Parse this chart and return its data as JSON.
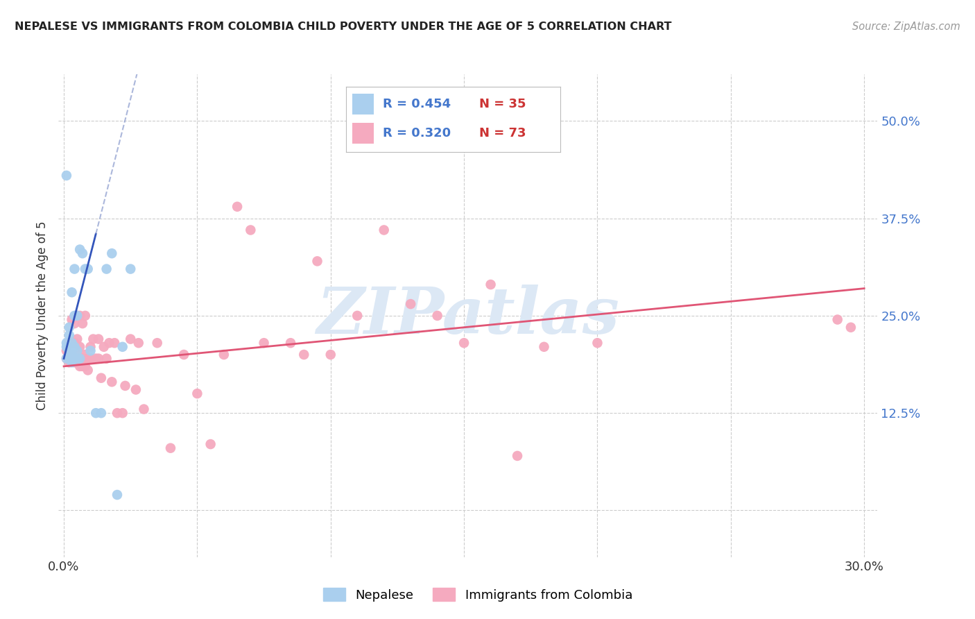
{
  "title": "NEPALESE VS IMMIGRANTS FROM COLOMBIA CHILD POVERTY UNDER THE AGE OF 5 CORRELATION CHART",
  "source": "Source: ZipAtlas.com",
  "ylabel": "Child Poverty Under the Age of 5",
  "xlim": [
    -0.002,
    0.305
  ],
  "ylim": [
    -0.06,
    0.56
  ],
  "ytick_vals": [
    0.0,
    0.125,
    0.25,
    0.375,
    0.5
  ],
  "ytick_labels": [
    "",
    "12.5%",
    "25.0%",
    "37.5%",
    "50.0%"
  ],
  "xtick_vals": [
    0.0,
    0.05,
    0.1,
    0.15,
    0.2,
    0.25,
    0.3
  ],
  "xtick_labels": [
    "0.0%",
    "",
    "",
    "",
    "",
    "",
    "30.0%"
  ],
  "nepalese_color": "#aacfee",
  "colombia_color": "#f5aabf",
  "trendline_nep_color": "#3355bb",
  "trendline_col_color": "#e05575",
  "trendline_nep_dash_color": "#8899cc",
  "watermark_text": "ZIPatlas",
  "watermark_color": "#dce8f5",
  "legend_nep_R": "R = 0.454",
  "legend_nep_N": "N = 35",
  "legend_col_R": "R = 0.320",
  "legend_col_N": "N = 73",
  "R_color": "#4477cc",
  "N_color": "#cc3333",
  "nepalese_x": [
    0.001,
    0.001,
    0.001,
    0.002,
    0.002,
    0.002,
    0.002,
    0.002,
    0.003,
    0.003,
    0.003,
    0.003,
    0.003,
    0.003,
    0.004,
    0.004,
    0.004,
    0.004,
    0.005,
    0.005,
    0.005,
    0.006,
    0.006,
    0.007,
    0.008,
    0.009,
    0.01,
    0.012,
    0.014,
    0.016,
    0.018,
    0.02,
    0.022,
    0.025,
    0.001
  ],
  "nepalese_y": [
    0.195,
    0.21,
    0.215,
    0.195,
    0.2,
    0.205,
    0.225,
    0.235,
    0.19,
    0.195,
    0.2,
    0.21,
    0.215,
    0.28,
    0.195,
    0.21,
    0.25,
    0.31,
    0.195,
    0.205,
    0.25,
    0.195,
    0.335,
    0.33,
    0.31,
    0.31,
    0.205,
    0.125,
    0.125,
    0.31,
    0.33,
    0.02,
    0.21,
    0.31,
    0.43
  ],
  "colombia_x": [
    0.001,
    0.001,
    0.002,
    0.002,
    0.002,
    0.002,
    0.003,
    0.003,
    0.003,
    0.003,
    0.004,
    0.004,
    0.004,
    0.004,
    0.005,
    0.005,
    0.005,
    0.005,
    0.006,
    0.006,
    0.006,
    0.006,
    0.007,
    0.007,
    0.007,
    0.008,
    0.008,
    0.008,
    0.009,
    0.009,
    0.01,
    0.01,
    0.011,
    0.012,
    0.013,
    0.013,
    0.014,
    0.015,
    0.016,
    0.017,
    0.018,
    0.019,
    0.02,
    0.022,
    0.023,
    0.025,
    0.027,
    0.028,
    0.03,
    0.035,
    0.04,
    0.045,
    0.05,
    0.055,
    0.06,
    0.065,
    0.07,
    0.075,
    0.085,
    0.09,
    0.095,
    0.1,
    0.11,
    0.12,
    0.13,
    0.14,
    0.15,
    0.16,
    0.17,
    0.18,
    0.2,
    0.295,
    0.29
  ],
  "colombia_y": [
    0.195,
    0.205,
    0.19,
    0.195,
    0.2,
    0.215,
    0.195,
    0.2,
    0.215,
    0.245,
    0.19,
    0.195,
    0.215,
    0.24,
    0.195,
    0.2,
    0.22,
    0.25,
    0.185,
    0.19,
    0.21,
    0.25,
    0.185,
    0.195,
    0.24,
    0.185,
    0.2,
    0.25,
    0.18,
    0.195,
    0.195,
    0.21,
    0.22,
    0.195,
    0.195,
    0.22,
    0.17,
    0.21,
    0.195,
    0.215,
    0.165,
    0.215,
    0.125,
    0.125,
    0.16,
    0.22,
    0.155,
    0.215,
    0.13,
    0.215,
    0.08,
    0.2,
    0.15,
    0.085,
    0.2,
    0.39,
    0.36,
    0.215,
    0.215,
    0.2,
    0.32,
    0.2,
    0.25,
    0.36,
    0.265,
    0.25,
    0.215,
    0.29,
    0.07,
    0.21,
    0.215,
    0.235,
    0.245
  ]
}
